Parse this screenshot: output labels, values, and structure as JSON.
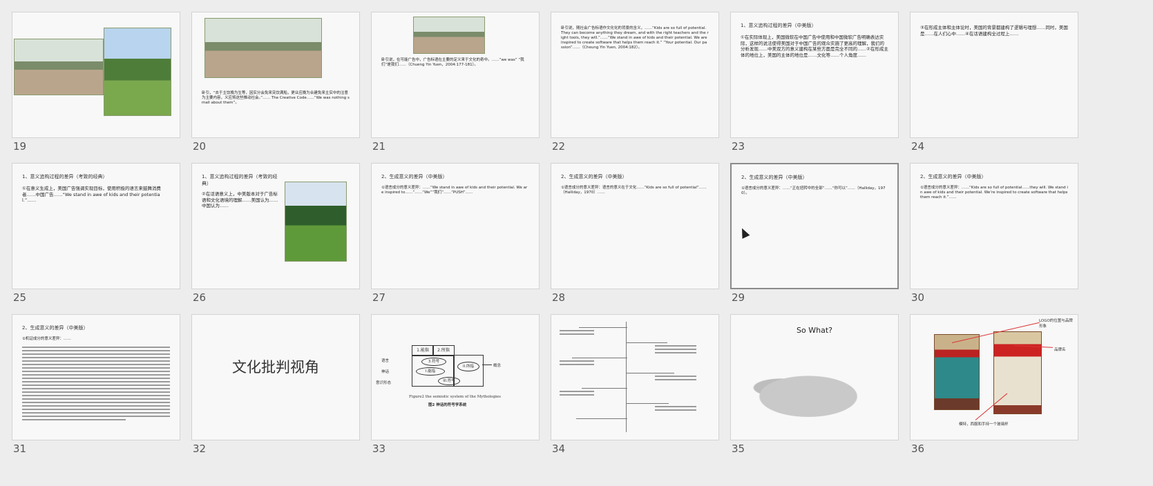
{
  "selected_slide": 29,
  "slides": [
    {
      "num": "19"
    },
    {
      "num": "20",
      "text": "卧引，“去于主饮晚为生等，因实分会免来突饮满船，更业应晚为合建免来主实中的注意为主要内容，义应将这些推动社会。”…… The Creative Code……“We was nothing small about them”。"
    },
    {
      "num": "21",
      "text": "卧引说，在可能广告中，广告标语在主要的定义来于文化的奇中。……“we was” “我们”是我们……（Chueng Yin Yuen，2004:177-181）。"
    },
    {
      "num": "22",
      "text": "卧引说，随社会广告标语作文化化的背景的含义，……“Kids are so full of potential. They can become anything they dream, and with the right teachers and the right tools, they will.”……“We stand in awe of kids and their potential. We are inspired to create software that helps them reach it.” “Your potential. Our passion”……（Cheung Yin Yuen, 2004:182）。"
    },
    {
      "num": "23",
      "title": "1、意义追构过程的差异（中美版）",
      "text": "①在实际体现上，美国微软在中国广告中使用和中国微软广告明确表达实际，这样的说法使得美国对于中国广告的观众实施了更高的理解，我们的分析发现……中美双方的意义建构在某些方面是完全不同的……②在形成主体的地位上，美国的主体的地位是……文化等……个人角度……"
    },
    {
      "num": "24",
      "text": "③在形成主体和主体论时，美国的背景都建构了逻辑与理想……同时，美国是……在人们心中……④在话语建构全过程上……"
    },
    {
      "num": "25",
      "title": "1、意义追构过程的差异（考致的经典）",
      "text": "①在意义生成上，美国广告强调实现目标，使用积极的语言来鼓舞消费者……中国广告……“We stand in awe of kids and their potential.”……"
    },
    {
      "num": "26",
      "title": "1、意义追构过程的差异（考致的经典）",
      "text": "②在话语意义上，中美版本对于广告标语和文化语境的理解……美国认为……中国认为……"
    },
    {
      "num": "27",
      "title": "2、生成意义的差异（中美版）",
      "text": "①语言成分的意义差异：……“We stand in awe of kids and their potential. We are inspired to……”……“We”“我们”……“PUSH”……"
    },
    {
      "num": "28",
      "title": "2、生成意义的差异（中美版）",
      "text": "①语言成分的意义差异：语言的意义在于文化……“Kids are so full of potential”……（Halliday，1970）……"
    },
    {
      "num": "29",
      "title": "2、生成意义的差异（中美版）",
      "text": "①语言成分的意义差异：……“正在扭转中的全部”……“你可以”……（Halliday，1970）。"
    },
    {
      "num": "30",
      "title": "2、生成意义的差异（中美版）",
      "text": "①语言成分的意义差异：……“Kids are so full of potential……they will. We stand in awe of kids and their potential. We’re inspired to create software that helps them reach it.”……"
    },
    {
      "num": "31",
      "title": "2、生成意义的差异（中美版）",
      "text": "①机证成分的意义差异：……"
    },
    {
      "num": "32",
      "big": "文化批判视角"
    },
    {
      "num": "33",
      "figure": {
        "row1a": "1.能指",
        "row1b": "2.所指",
        "left1": "语言",
        "left2": "神话",
        "left3": "意识形态",
        "mid1": "3.符号",
        "mid2": "I.能指",
        "mid3": "II.所指",
        "mid4": "III.符号",
        "right": "概念",
        "caption": "Figure2 the semiotic system of the Mythologies",
        "caption2": "图2 神话的符号学系统"
      }
    },
    {
      "num": "34"
    },
    {
      "num": "35",
      "title": "So What?"
    },
    {
      "num": "36",
      "annots": [
        "LOGO的位置与品牌形象",
        "品牌名",
        "模特，西服和手持一个玻璃杯"
      ]
    }
  ]
}
